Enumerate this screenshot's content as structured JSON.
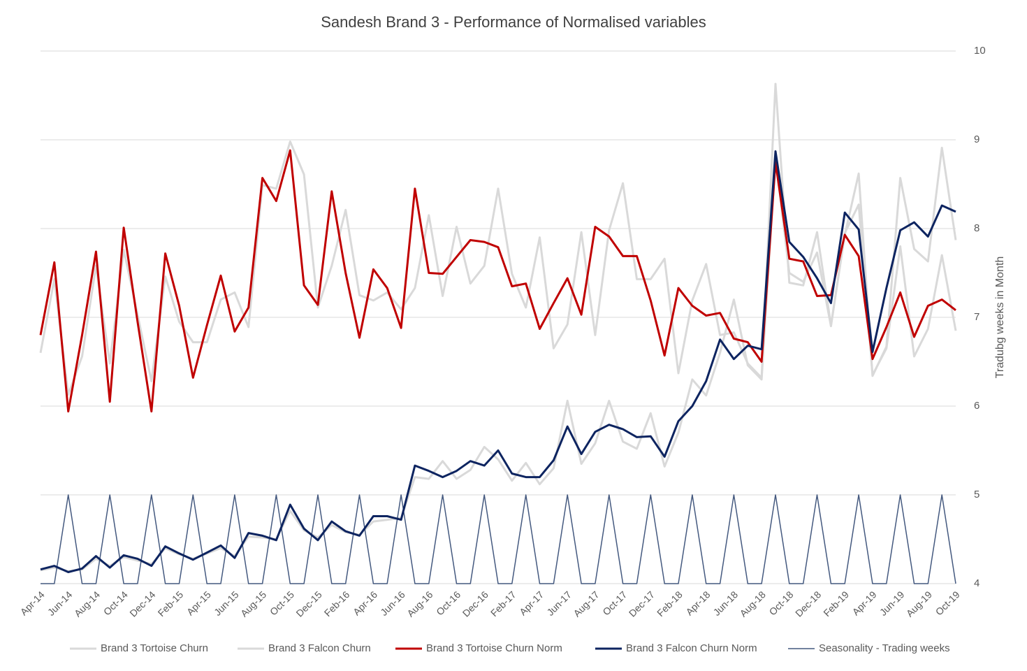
{
  "chart_data": {
    "type": "line",
    "title": "Sandesh Brand 3 - Performance of Normalised variables",
    "y_axis_label": "Tradubg weeks in Month",
    "axis_side": "right",
    "categories": [
      "Apr-14",
      null,
      "Jun-14",
      null,
      "Aug-14",
      null,
      "Oct-14",
      null,
      "Dec-14",
      null,
      "Feb-15",
      null,
      "Apr-15",
      null,
      "Jun-15",
      null,
      "Aug-15",
      null,
      "Oct-15",
      null,
      "Dec-15",
      null,
      "Feb-16",
      null,
      "Apr-16",
      null,
      "Jun-16",
      null,
      "Aug-16",
      null,
      "Oct-16",
      null,
      "Dec-16",
      null,
      "Feb-17",
      null,
      "Apr-17",
      null,
      "Jun-17",
      null,
      "Aug-17",
      null,
      "Oct-17",
      null,
      "Dec-17",
      null,
      "Feb-18",
      null,
      "Apr-18",
      null,
      "Jun-18",
      null,
      "Aug-18",
      null,
      "Oct-18",
      null,
      "Dec-18",
      null,
      "Feb-19",
      null,
      "Apr-19",
      null,
      "Jun-19",
      null,
      "Aug-19",
      null,
      "Oct-19"
    ],
    "ylim": [
      4,
      10
    ],
    "yticks": [
      4,
      5,
      6,
      7,
      8,
      9,
      10
    ],
    "grid": true,
    "legend": "bottom",
    "series": [
      {
        "name": "Brand 3 Tortoise Churn",
        "color": "#d9d9d9",
        "width": 3,
        "values": [
          6.6,
          7.43,
          6.13,
          6.56,
          7.58,
          6.48,
          7.76,
          7.03,
          6.28,
          7.46,
          6.95,
          6.72,
          6.72,
          7.2,
          7.28,
          6.89,
          8.49,
          8.45,
          8.98,
          8.61,
          7.11,
          7.58,
          8.21,
          7.25,
          7.19,
          7.28,
          7.09,
          7.33,
          8.15,
          7.24,
          8.02,
          7.38,
          7.58,
          8.45,
          7.49,
          7.11,
          7.9,
          6.65,
          6.92,
          7.96,
          6.8,
          7.98,
          8.51,
          7.43,
          7.43,
          7.66,
          6.37,
          7.19,
          7.6,
          6.8,
          6.83,
          6.48,
          6.32,
          9.63,
          7.39,
          7.36,
          7.96,
          6.91,
          7.93,
          8.62,
          6.34,
          6.67,
          8.57,
          7.77,
          7.63,
          8.91,
          7.87
        ]
      },
      {
        "name": "Brand 3 Falcon Churn",
        "color": "#d9d9d9",
        "width": 3,
        "values": [
          4.15,
          4.18,
          4.14,
          4.16,
          4.28,
          4.2,
          4.3,
          4.26,
          4.22,
          4.4,
          4.33,
          4.28,
          4.34,
          4.4,
          4.31,
          4.53,
          4.52,
          4.5,
          4.82,
          4.6,
          4.52,
          4.66,
          4.58,
          4.55,
          4.7,
          4.72,
          4.74,
          5.2,
          5.18,
          5.38,
          5.18,
          5.28,
          5.54,
          5.4,
          5.16,
          5.36,
          5.12,
          5.3,
          6.06,
          5.35,
          5.58,
          6.06,
          5.6,
          5.52,
          5.92,
          5.32,
          5.7,
          6.3,
          6.12,
          6.6,
          7.2,
          6.46,
          6.3,
          8.8,
          7.5,
          7.4,
          7.73,
          6.9,
          7.95,
          8.27,
          6.35,
          6.65,
          7.8,
          6.56,
          6.87,
          7.7,
          6.85
        ]
      },
      {
        "name": "Brand 3 Tortoise Churn Norm",
        "color": "#c00000",
        "width": 3,
        "values": [
          6.8,
          7.62,
          5.94,
          6.8,
          7.74,
          6.05,
          8.01,
          6.95,
          5.94,
          7.72,
          7.13,
          6.32,
          6.91,
          7.47,
          6.84,
          7.11,
          8.57,
          8.31,
          8.88,
          7.36,
          7.14,
          8.42,
          7.5,
          6.77,
          7.54,
          7.33,
          6.88,
          8.45,
          7.5,
          7.49,
          7.68,
          7.87,
          7.85,
          7.79,
          7.35,
          7.38,
          6.87,
          7.16,
          7.44,
          7.03,
          8.02,
          7.91,
          7.69,
          7.69,
          7.19,
          6.57,
          7.33,
          7.13,
          7.02,
          7.05,
          6.76,
          6.72,
          6.5,
          8.75,
          7.66,
          7.63,
          7.24,
          7.25,
          7.93,
          7.69,
          6.53,
          6.89,
          7.28,
          6.78,
          7.13,
          7.2,
          7.08
        ]
      },
      {
        "name": "Brand 3 Falcon Churn Norm",
        "color": "#0d2460",
        "width": 3,
        "values": [
          4.16,
          4.2,
          4.13,
          4.17,
          4.31,
          4.18,
          4.32,
          4.28,
          4.2,
          4.42,
          4.34,
          4.27,
          4.35,
          4.43,
          4.29,
          4.57,
          4.54,
          4.49,
          4.89,
          4.62,
          4.49,
          4.7,
          4.59,
          4.54,
          4.76,
          4.76,
          4.72,
          5.33,
          5.27,
          5.2,
          5.27,
          5.38,
          5.33,
          5.5,
          5.24,
          5.2,
          5.2,
          5.39,
          5.77,
          5.46,
          5.71,
          5.79,
          5.74,
          5.65,
          5.66,
          5.43,
          5.83,
          6.0,
          6.28,
          6.75,
          6.53,
          6.68,
          6.64,
          8.87,
          7.85,
          7.68,
          7.44,
          7.16,
          8.18,
          7.99,
          6.61,
          7.33,
          7.98,
          8.07,
          7.91,
          8.26,
          8.19
        ]
      },
      {
        "name": "Seasonality - Trading weeks",
        "color": "#44597f",
        "width": 1.5,
        "values": [
          4,
          4,
          5,
          4,
          4,
          5,
          4,
          4,
          5,
          4,
          4,
          5,
          4,
          4,
          5,
          4,
          4,
          5,
          4,
          4,
          5,
          4,
          4,
          5,
          4,
          4,
          5,
          4,
          4,
          5,
          4,
          4,
          5,
          4,
          4,
          5,
          4,
          4,
          5,
          4,
          4,
          5,
          4,
          4,
          5,
          4,
          4,
          5,
          4,
          4,
          5,
          4,
          4,
          5,
          4,
          4,
          5,
          4,
          4,
          5,
          4,
          4,
          5,
          4,
          4,
          5,
          4
        ]
      }
    ]
  }
}
